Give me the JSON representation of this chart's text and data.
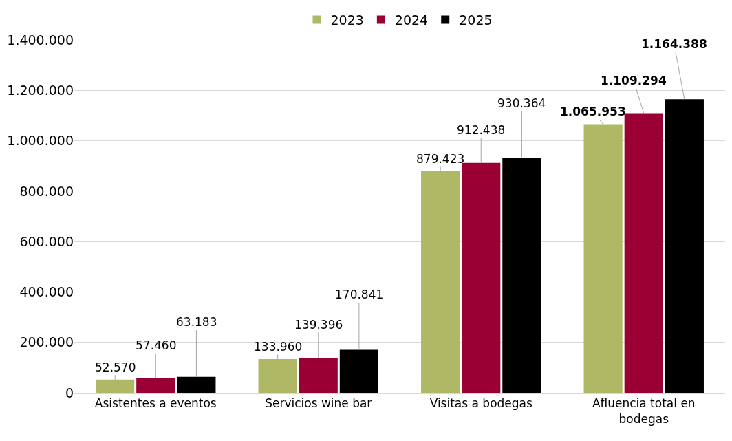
{
  "chart_data": {
    "type": "bar",
    "categories": [
      "Asistentes a eventos",
      "Servicios wine bar",
      "Visitas a bodegas",
      "Afluencia total en bodegas"
    ],
    "series": [
      {
        "name": "2023",
        "color": "#afb865",
        "values": [
          52570,
          133960,
          879423,
          1065953
        ],
        "value_labels": [
          "52.570",
          "133.960",
          "879.423",
          "1.065.953"
        ]
      },
      {
        "name": "2024",
        "color": "#9b0034",
        "values": [
          57460,
          139396,
          912438,
          1109294
        ],
        "value_labels": [
          "57.460",
          "139.396",
          "912.438",
          "1.109.294"
        ]
      },
      {
        "name": "2025",
        "color": "#000000",
        "values": [
          63183,
          170841,
          930364,
          1164388
        ],
        "value_labels": [
          "63.183",
          "170.841",
          "930.364",
          "1.164.388"
        ]
      }
    ],
    "ylim": [
      0,
      1400000
    ],
    "yticks": [
      {
        "value": 0,
        "label": "0"
      },
      {
        "value": 200000,
        "label": "200.000"
      },
      {
        "value": 400000,
        "label": "400.000"
      },
      {
        "value": 600000,
        "label": "600.000"
      },
      {
        "value": 800000,
        "label": "800.000"
      },
      {
        "value": 1000000,
        "label": "1.000.000"
      },
      {
        "value": 1200000,
        "label": "1.200.000"
      },
      {
        "value": 1400000,
        "label": "1.400.000"
      }
    ],
    "grid": "y",
    "legend": "top"
  }
}
